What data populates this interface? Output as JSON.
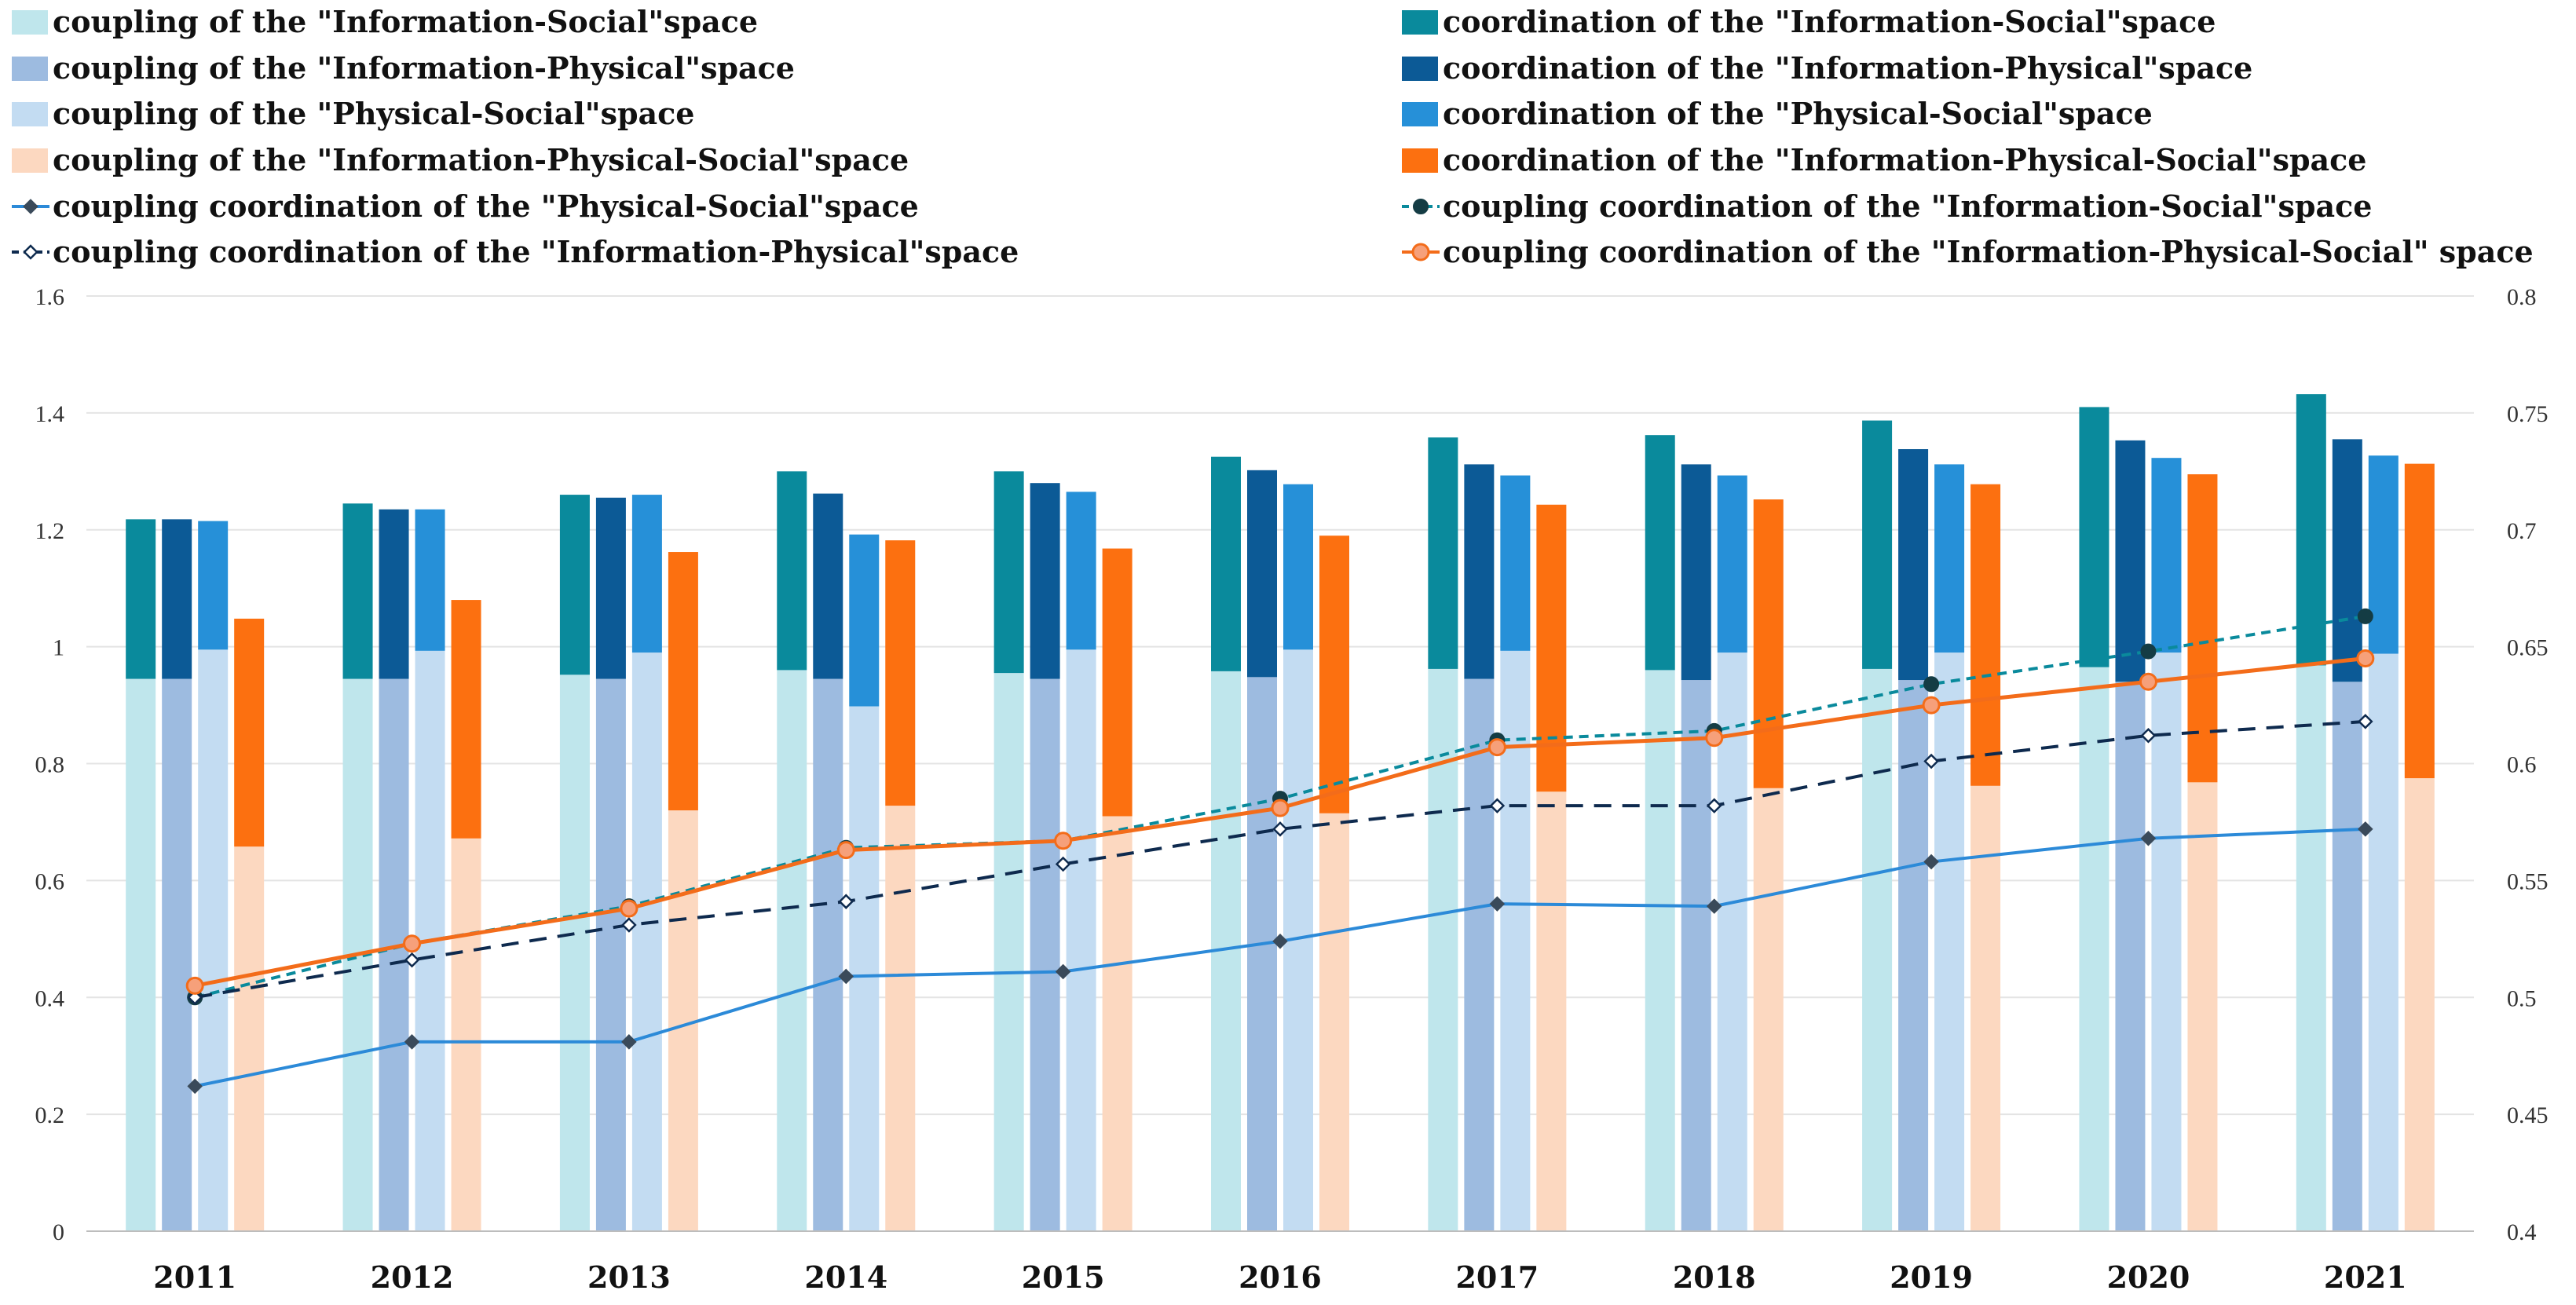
{
  "chart_data": {
    "type": "bar",
    "categories": [
      "2011",
      "2012",
      "2013",
      "2014",
      "2015",
      "2016",
      "2017",
      "2018",
      "2019",
      "2020",
      "2021"
    ],
    "y_left": {
      "min": 0,
      "max": 1.6,
      "ticks": [
        "0",
        "0.2",
        "0.4",
        "0.6",
        "0.8",
        "1",
        "1.2",
        "1.4",
        "1.6"
      ]
    },
    "y_right": {
      "min": 0.4,
      "max": 0.8,
      "ticks": [
        "0.4",
        "0.45",
        "0.5",
        "0.55",
        "0.6",
        "0.65",
        "0.7",
        "0.75",
        "0.8"
      ]
    },
    "bar_groups": [
      {
        "coupling_name": "coupling of the \"Information-Social\"space",
        "coordination_name": "coordination of the \"Information-Social\"space",
        "coupling": [
          0.945,
          0.945,
          0.952,
          0.96,
          0.955,
          0.958,
          0.962,
          0.96,
          0.962,
          0.965,
          0.968
        ],
        "total": [
          1.218,
          1.245,
          1.26,
          1.3,
          1.3,
          1.325,
          1.358,
          1.362,
          1.387,
          1.41,
          1.432
        ],
        "coupling_color": "#bfe6ec",
        "coordination_color": "#0a8a9c"
      },
      {
        "coupling_name": "coupling of the \"Information-Physical\"space",
        "coordination_name": "coordination of the \"Information-Physical\"space",
        "coupling": [
          0.945,
          0.945,
          0.945,
          0.945,
          0.945,
          0.948,
          0.945,
          0.943,
          0.943,
          0.94,
          0.94
        ],
        "total": [
          1.218,
          1.235,
          1.255,
          1.262,
          1.28,
          1.302,
          1.312,
          1.312,
          1.338,
          1.353,
          1.355
        ],
        "coupling_color": "#9dbbe0",
        "coordination_color": "#0c5a96"
      },
      {
        "coupling_name": "coupling of the \"Physical-Social\"space",
        "coordination_name": "coordination of the \"Physical-Social\"space",
        "coupling": [
          0.995,
          0.993,
          0.99,
          0.898,
          0.995,
          0.995,
          0.993,
          0.99,
          0.99,
          0.99,
          0.988
        ],
        "total": [
          1.215,
          1.235,
          1.26,
          1.192,
          1.265,
          1.278,
          1.293,
          1.293,
          1.312,
          1.323,
          1.327
        ],
        "coupling_color": "#c3dcf2",
        "coordination_color": "#2690d8"
      },
      {
        "coupling_name": "coupling of the \"Information-Physical-Social\"space",
        "coordination_name": "coordination of the \"Information-Physical-Social\"space",
        "coupling": [
          0.658,
          0.672,
          0.72,
          0.728,
          0.71,
          0.715,
          0.752,
          0.758,
          0.762,
          0.768,
          0.775
        ],
        "total": [
          1.048,
          1.08,
          1.162,
          1.182,
          1.168,
          1.19,
          1.243,
          1.252,
          1.278,
          1.295,
          1.313
        ],
        "coupling_color": "#fcd8c0",
        "coordination_color": "#fc7010"
      }
    ],
    "lines": [
      {
        "name": "coupling coordination of the \"Physical-Social\"space",
        "values": [
          0.462,
          0.481,
          0.481,
          0.509,
          0.511,
          0.524,
          0.54,
          0.539,
          0.558,
          0.568,
          0.572
        ],
        "color": "#2c8ad8",
        "marker": "diamond",
        "marker_color": "#3a4a5a",
        "dash": "solid",
        "axis": "right"
      },
      {
        "name": "coupling coordination of the \"Information-Social\"space",
        "values": [
          0.5,
          0.523,
          0.539,
          0.564,
          0.567,
          0.585,
          0.61,
          0.614,
          0.634,
          0.648,
          0.663
        ],
        "color": "#0a8a9c",
        "marker": "circle",
        "marker_color": "#143c44",
        "dash": "dashed",
        "axis": "right"
      },
      {
        "name": "coupling coordination of the \"Information-Physical\"space",
        "values": [
          0.5,
          0.516,
          0.531,
          0.541,
          0.557,
          0.572,
          0.582,
          0.582,
          0.601,
          0.612,
          0.618
        ],
        "color": "#0e2a4e",
        "marker": "hollow-diamond",
        "marker_color": "#0e2a4e",
        "dash": "dashed",
        "axis": "right"
      },
      {
        "name": "coupling coordination of the \"Information-Physical-Social\" space",
        "values": [
          0.505,
          0.523,
          0.538,
          0.563,
          0.567,
          0.581,
          0.607,
          0.611,
          0.625,
          0.635,
          0.645
        ],
        "color": "#f36c1a",
        "marker": "circle-open",
        "marker_color": "#f6a07a",
        "dash": "solid",
        "axis": "right"
      }
    ]
  }
}
